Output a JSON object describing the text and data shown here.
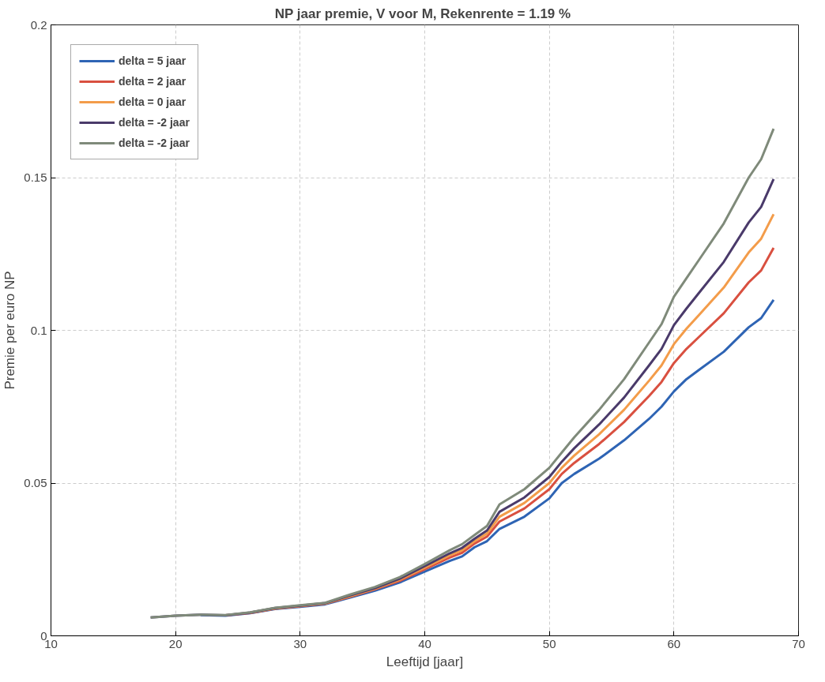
{
  "chart_data": {
    "type": "line",
    "title": "NP jaar premie, V voor M,  Rekenrente = 1.19 %",
    "xlabel": "Leeftijd [jaar]",
    "ylabel": "Premie per euro NP",
    "x": [
      18,
      20,
      22,
      24,
      26,
      28,
      30,
      32,
      34,
      36,
      38,
      40,
      42,
      43,
      44,
      45,
      46,
      48,
      50,
      51,
      52,
      54,
      56,
      58,
      59,
      60,
      61,
      62,
      64,
      66,
      67,
      68
    ],
    "series": [
      {
        "name": "delta = 5 jaar",
        "color": "#2e64b4",
        "values": [
          null,
          null,
          0.0068,
          0.0066,
          0.0074,
          0.0088,
          0.0095,
          0.0103,
          0.0125,
          0.0148,
          0.0175,
          0.021,
          0.0245,
          0.026,
          0.029,
          0.031,
          0.035,
          0.039,
          0.045,
          0.05,
          0.053,
          0.058,
          0.064,
          0.071,
          0.075,
          0.08,
          0.084,
          0.087,
          0.093,
          0.101,
          0.104,
          0.11
        ]
      },
      {
        "name": "delta = 2 jaar",
        "color": "#d95040",
        "values": [
          null,
          null,
          null,
          0.0067,
          0.0075,
          0.0089,
          0.0097,
          0.0105,
          0.0128,
          0.0152,
          0.018,
          0.0218,
          0.0256,
          0.0272,
          0.0302,
          0.0325,
          0.0374,
          0.0417,
          0.048,
          0.053,
          0.0566,
          0.0628,
          0.07,
          0.0785,
          0.0831,
          0.0893,
          0.0939,
          0.0978,
          0.1056,
          0.1157,
          0.1196,
          0.127
        ]
      },
      {
        "name": "delta = 0 jaar",
        "color": "#f39c4a",
        "values": [
          null,
          null,
          null,
          null,
          0.0076,
          0.009,
          0.0098,
          0.0106,
          0.013,
          0.0154,
          0.0184,
          0.0223,
          0.0263,
          0.028,
          0.031,
          0.0335,
          0.039,
          0.0435,
          0.05,
          0.055,
          0.059,
          0.066,
          0.074,
          0.0835,
          0.0885,
          0.0955,
          0.1005,
          0.105,
          0.114,
          0.1255,
          0.13,
          0.138
        ]
      },
      {
        "name": "delta = -2 jaar",
        "color": "#4a3a6a",
        "values": [
          0.006,
          0.0066,
          0.0069,
          0.0067,
          0.0076,
          0.0091,
          0.0099,
          0.0107,
          0.0132,
          0.0156,
          0.0187,
          0.0228,
          0.027,
          0.0288,
          0.0318,
          0.0345,
          0.0406,
          0.0453,
          0.052,
          0.057,
          0.0614,
          0.0692,
          0.078,
          0.0885,
          0.0939,
          0.1017,
          0.1071,
          0.1122,
          0.1224,
          0.1353,
          0.1404,
          0.1495
        ]
      },
      {
        "name": "delta = -2 jaar",
        "color": "#7f8a7a",
        "values": [
          0.006,
          0.0066,
          0.0069,
          0.0068,
          0.0077,
          0.0092,
          0.01,
          0.0108,
          0.0135,
          0.016,
          0.0192,
          0.0235,
          0.028,
          0.03,
          0.033,
          0.036,
          0.043,
          0.048,
          0.055,
          0.06,
          0.065,
          0.074,
          0.084,
          0.096,
          0.102,
          0.111,
          0.117,
          0.123,
          0.135,
          0.15,
          0.156,
          0.166
        ]
      }
    ],
    "xlim": [
      10,
      70
    ],
    "ylim": [
      0,
      0.2
    ],
    "xticks": [
      10,
      20,
      30,
      40,
      50,
      60,
      70
    ],
    "yticks": [
      0,
      0.05,
      0.1,
      0.15,
      0.2
    ],
    "grid": true,
    "legend": "top left",
    "marker": "none",
    "line_style": "solid"
  }
}
